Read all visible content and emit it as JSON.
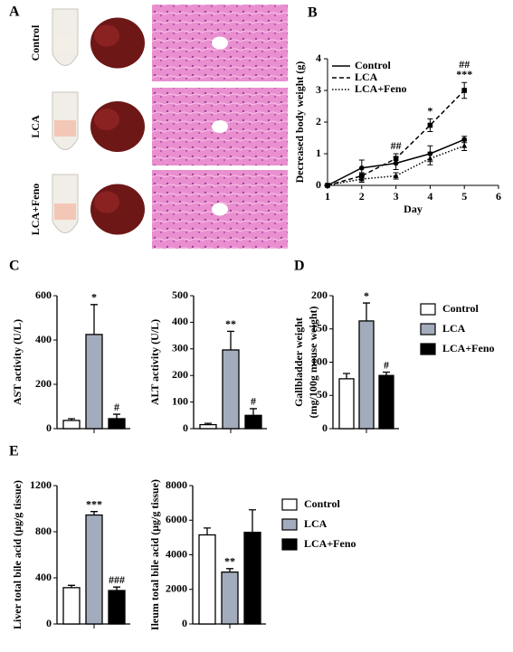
{
  "panel_a": {
    "label": "A",
    "groups": [
      "Control",
      "LCA",
      "LCA+Feno"
    ]
  },
  "chart_data": [
    {
      "type": "line",
      "panel": "B",
      "x": [
        1,
        2,
        3,
        4,
        5
      ],
      "xlabel": "Day",
      "ylabel": "Decreased body weight (g)",
      "xlim": [
        1,
        6
      ],
      "xticks": [
        1,
        2,
        3,
        4,
        5,
        6
      ],
      "ylim": [
        0,
        4
      ],
      "yticks": [
        0,
        1,
        2,
        3,
        4
      ],
      "legend": "upper left",
      "series": [
        {
          "name": "Control",
          "color": "#000000",
          "line": "solid",
          "marker": "circle",
          "values": [
            0,
            0.55,
            0.7,
            1.0,
            1.45
          ],
          "errors": [
            null,
            0.25,
            0.2,
            0.25,
            0.1
          ]
        },
        {
          "name": "LCA",
          "color": "#000000",
          "line": "dashed",
          "marker": "square",
          "values": [
            0,
            0.3,
            0.85,
            1.9,
            3.0
          ],
          "errors": [
            null,
            0.1,
            0.15,
            0.2,
            0.25
          ]
        },
        {
          "name": "LCA+Feno",
          "color": "#000000",
          "line": "dotted",
          "marker": "triangle",
          "values": [
            0,
            0.2,
            0.3,
            0.85,
            1.25
          ],
          "errors": [
            null,
            0.1,
            0.1,
            0.2,
            0.15
          ]
        }
      ],
      "annotations": [
        {
          "text": "##",
          "x": 3
        },
        {
          "text": "*",
          "x": 4
        },
        {
          "text": "***",
          "x": 5
        },
        {
          "text": "##",
          "x": 5
        }
      ]
    },
    {
      "type": "bar",
      "panel": "C",
      "ylabel": "AST activity (U/L)",
      "ylim": [
        0,
        600
      ],
      "yticks": [
        0,
        200,
        400,
        600
      ],
      "values": [
        37,
        425,
        45
      ],
      "errors": [
        8,
        135,
        20
      ],
      "colors": [
        "#ffffff",
        "#a3acbc",
        "#000000"
      ],
      "annotations": [
        null,
        "*",
        "#"
      ]
    },
    {
      "type": "bar",
      "ylabel": "ALT activity (U/L)",
      "ylim": [
        0,
        500
      ],
      "yticks": [
        0,
        100,
        200,
        300,
        400,
        500
      ],
      "values": [
        15,
        296,
        50
      ],
      "errors": [
        5,
        70,
        25
      ],
      "colors": [
        "#ffffff",
        "#a3acbc",
        "#000000"
      ],
      "annotations": [
        null,
        "**",
        "#"
      ]
    },
    {
      "type": "bar",
      "panel": "D",
      "ylabel": [
        "Gallbladder weight",
        "(mg/100g mouse weight)"
      ],
      "ylim": [
        0,
        200
      ],
      "yticks": [
        0,
        50,
        100,
        150,
        200
      ],
      "values": [
        75,
        162,
        80
      ],
      "errors": [
        8,
        27,
        5
      ],
      "colors": [
        "#ffffff",
        "#a3acbc",
        "#000000"
      ],
      "annotations": [
        null,
        "*",
        "#"
      ],
      "legend": [
        "Control",
        "LCA",
        "LCA+Feno"
      ]
    },
    {
      "type": "bar",
      "panel": "E",
      "ylabel": "Liver total bile acid (μg/g tissue)",
      "ylim": [
        0,
        1200
      ],
      "yticks": [
        0,
        400,
        800,
        1200
      ],
      "values": [
        315,
        945,
        290
      ],
      "errors": [
        20,
        30,
        30
      ],
      "colors": [
        "#ffffff",
        "#a3acbc",
        "#000000"
      ],
      "annotations": [
        null,
        "***",
        "###"
      ]
    },
    {
      "type": "bar",
      "ylabel": "Ileum total bile acid (μg/g tissue)",
      "ylim": [
        0,
        8000
      ],
      "yticks": [
        0,
        2000,
        4000,
        6000,
        8000
      ],
      "values": [
        5150,
        3000,
        5300
      ],
      "errors": [
        400,
        200,
        1300
      ],
      "colors": [
        "#ffffff",
        "#a3acbc",
        "#000000"
      ],
      "annotations": [
        null,
        "**",
        null
      ],
      "legend": [
        "Control",
        "LCA",
        "LCA+Feno"
      ]
    }
  ]
}
